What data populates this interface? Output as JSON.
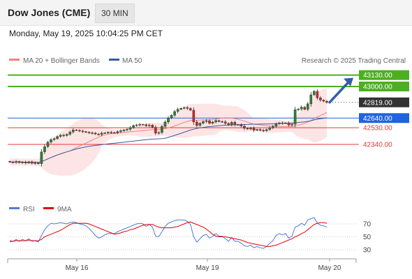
{
  "header": {
    "symbol": "Dow Jones (CME)",
    "interval": "30 MIN",
    "timestamp": "Monday, May 19, 2025 10:04:25 PM CET"
  },
  "copyright": "Research © 2025 Trading Central",
  "colors": {
    "background": "#ffffff",
    "resistance": "#4caf22",
    "support": "#e53935",
    "pivot": "#1f63e0",
    "current": "#333333",
    "bollinger": "#f08080",
    "ma50": "#3a5a9c",
    "arrow": "#2f5fa8",
    "up_candle": "#2e7d32",
    "down_candle": "#c62828",
    "rsi": "#4f7ad9",
    "rsi_ma": "#e00000"
  },
  "chart_data": [
    {
      "type": "candlestick",
      "legend": [
        {
          "name": "MA 20 + Bollinger Bands",
          "color": "#f08080"
        },
        {
          "name": "MA 50",
          "color": "#3a5a9c"
        }
      ],
      "levels": [
        {
          "value": 43130.0,
          "label": "43130.00",
          "kind": "resistance",
          "boxed": true
        },
        {
          "value": 43000.0,
          "label": "43000.00",
          "kind": "resistance",
          "boxed": true
        },
        {
          "value": 42819.0,
          "label": "42819.00",
          "kind": "current",
          "boxed": true
        },
        {
          "value": 42640.0,
          "label": "42640.00",
          "kind": "pivot",
          "boxed": true
        },
        {
          "value": 42530.0,
          "label": "42530.00",
          "kind": "support",
          "boxed": false
        },
        {
          "value": 42340.0,
          "label": "42340.00",
          "kind": "support",
          "boxed": false
        }
      ],
      "x_ticks": [
        "May 16",
        "May 19",
        "May 20"
      ],
      "price_range": [
        42050,
        43150
      ],
      "close": [
        42140,
        42135,
        42145,
        42132,
        42138,
        42128,
        42142,
        42125,
        42130,
        42120,
        42255,
        42315,
        42365,
        42395,
        42405,
        42430,
        42445,
        42440,
        42455,
        42482,
        42505,
        42500,
        42492,
        42485,
        42478,
        42472,
        42470,
        42458,
        42452,
        42468,
        42472,
        42478,
        42475,
        42470,
        42485,
        42495,
        42505,
        42512,
        42530,
        42555,
        42562,
        42568,
        42565,
        42552,
        42560,
        42535,
        42468,
        42475,
        42545,
        42595,
        42640,
        42672,
        42715,
        42740,
        42752,
        42760,
        42750,
        42730,
        42595,
        42555,
        42582,
        42600,
        42610,
        42580,
        42595,
        42612,
        42600,
        42598,
        42580,
        42562,
        42592,
        42565,
        42565,
        42548,
        42523,
        42515,
        42525,
        42500,
        42510,
        42500,
        42495,
        42510,
        42530,
        42545,
        42575,
        42585,
        42580,
        42585,
        42560,
        42570,
        42735,
        42742,
        42765,
        42740,
        42802,
        42905,
        42945,
        42870,
        42845,
        42832,
        42819
      ],
      "direction": "up",
      "target_label": "43130.00"
    },
    {
      "type": "line",
      "legend": [
        {
          "name": "RSI",
          "color": "#4f7ad9"
        },
        {
          "name": "9MA",
          "color": "#e00000"
        }
      ],
      "y_ticks": [
        70,
        50,
        30
      ],
      "ylim": [
        15,
        85
      ],
      "rsi": [
        42,
        43,
        46,
        43,
        46,
        44,
        47,
        43,
        44,
        42,
        52,
        61,
        67,
        71,
        70,
        71,
        72,
        71,
        70,
        72,
        73,
        72,
        70,
        69,
        67,
        63,
        58,
        52,
        48,
        50,
        53,
        55,
        55,
        55,
        58,
        60,
        62,
        64,
        66,
        68,
        70,
        71,
        70,
        66,
        69,
        65,
        51,
        50,
        58,
        66,
        71,
        73,
        75,
        76,
        76,
        76,
        74,
        69,
        50,
        42,
        47,
        52,
        54,
        48,
        51,
        55,
        51,
        51,
        47,
        43,
        49,
        43,
        43,
        40,
        36,
        35,
        37,
        33,
        35,
        33,
        32,
        35,
        40,
        44,
        52,
        55,
        53,
        55,
        48,
        51,
        65,
        67,
        71,
        68,
        76,
        78,
        80,
        71,
        68,
        67,
        65
      ],
      "rsi_ma": [
        44,
        43,
        44,
        44,
        44,
        44,
        45,
        44,
        44,
        44,
        46,
        50,
        52,
        54,
        56,
        58,
        60,
        63,
        66,
        69,
        71,
        71,
        71,
        71,
        71,
        70,
        68,
        66,
        64,
        62,
        60,
        58,
        56,
        54,
        55,
        56,
        58,
        59,
        61,
        62,
        64,
        66,
        68,
        69,
        69,
        69,
        67,
        65,
        64,
        64,
        64,
        64,
        65,
        66,
        68,
        70,
        72,
        73,
        71,
        69,
        67,
        65,
        62,
        58,
        54,
        51,
        50,
        50,
        50,
        49,
        48,
        47,
        46,
        45,
        43,
        41,
        40,
        39,
        38,
        37,
        36,
        35,
        35,
        36,
        37,
        39,
        41,
        43,
        45,
        47,
        50,
        52,
        55,
        57,
        61,
        65,
        69,
        71,
        72,
        72,
        71
      ]
    }
  ]
}
